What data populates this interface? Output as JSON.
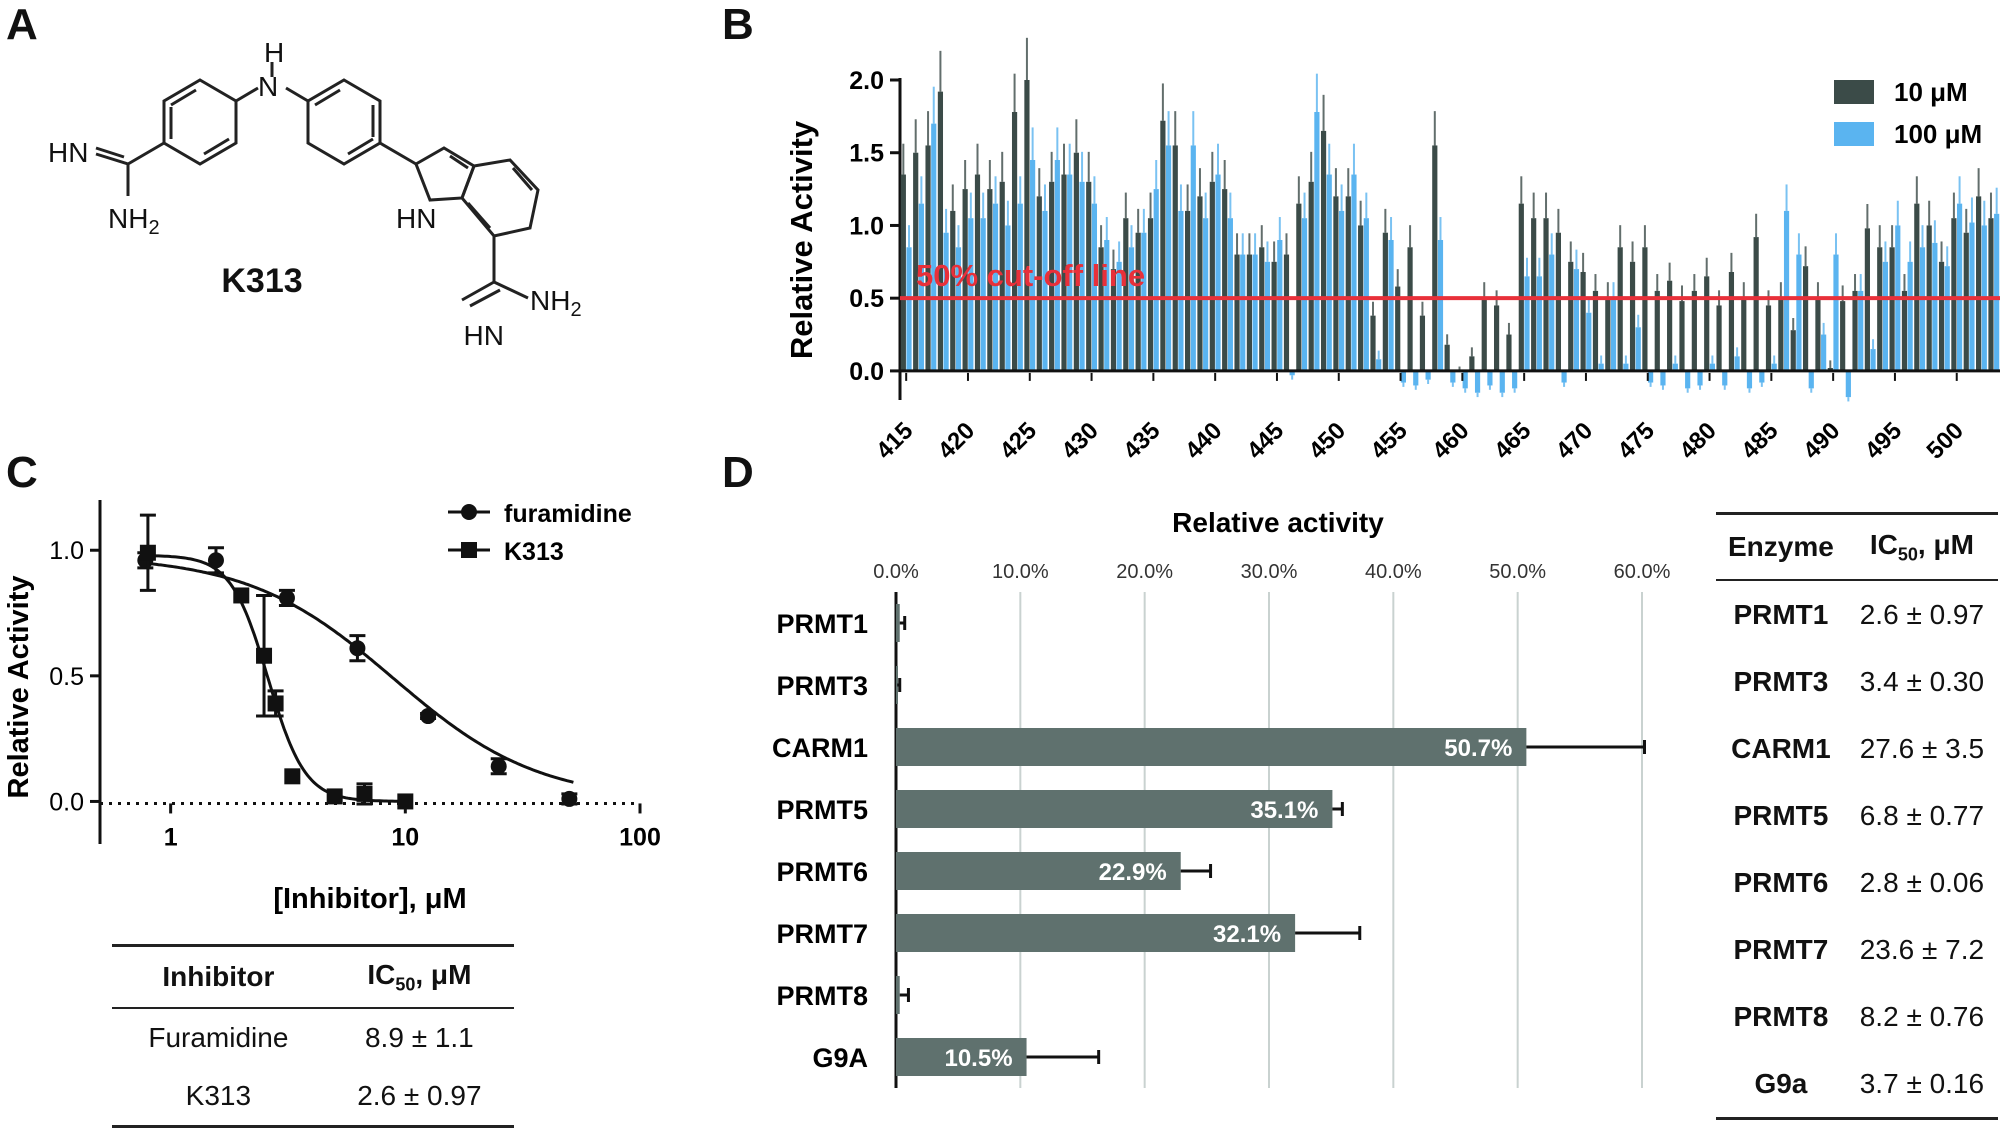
{
  "panels": {
    "a": "A",
    "b": "B",
    "c": "C",
    "d": "D"
  },
  "panel_a": {
    "compound_name": "K313",
    "atom_labels": {
      "nh": "NH",
      "h": "H",
      "hn": "HN",
      "nh2": "NH",
      "sub2": "2",
      "n": "N"
    }
  },
  "colors": {
    "dark_bar": "#3b4b48",
    "light_bar": "#5ab4f0",
    "cutoff_line": "#e8303a",
    "bar_d": "#5f716e",
    "axis": "#111111"
  },
  "chart_data": [
    {
      "type": "bar",
      "panel": "B",
      "ylabel": "Relative Activity",
      "ylim": [
        -0.2,
        2.0
      ],
      "yticks": [
        "0.0",
        "0.5",
        "1.0",
        "1.5",
        "2.0"
      ],
      "x_start": 415,
      "x_end": 503,
      "xticks": [
        "415",
        "420",
        "425",
        "430",
        "435",
        "440",
        "445",
        "450",
        "455",
        "460",
        "465",
        "470",
        "475",
        "480",
        "485",
        "490",
        "495",
        "500"
      ],
      "legend_position": "top-right",
      "cutoff": {
        "value": 0.5,
        "label": "50% cut-off line"
      },
      "series": [
        {
          "name": "10 μM",
          "values": [
            1.35,
            1.5,
            1.55,
            1.92,
            1.1,
            1.25,
            1.35,
            1.25,
            1.3,
            1.78,
            2.0,
            1.2,
            1.3,
            1.35,
            1.5,
            1.3,
            0.85,
            0.7,
            1.05,
            0.95,
            1.05,
            1.72,
            1.55,
            1.1,
            1.2,
            1.3,
            1.25,
            0.8,
            0.8,
            0.85,
            0.75,
            0.8,
            1.15,
            1.3,
            1.65,
            1.2,
            1.2,
            1.0,
            0.38,
            0.95,
            0.58,
            0.85,
            0.38,
            1.55,
            0.18,
            0.0,
            0.1,
            0.5,
            0.45,
            0.25,
            1.15,
            1.05,
            1.05,
            0.95,
            0.75,
            0.68,
            0.55,
            0.5,
            0.85,
            0.75,
            0.85,
            0.55,
            0.62,
            0.48,
            0.55,
            0.65,
            0.45,
            0.68,
            0.5,
            0.92,
            0.45,
            0.5,
            0.28,
            0.72,
            0.5,
            0.02,
            0.48,
            0.55,
            0.98,
            0.85,
            0.85,
            0.55,
            1.15,
            1.0,
            0.75,
            1.05,
            0.95,
            1.2,
            1.05
          ],
          "color": "#3b4b48"
        },
        {
          "name": "100 μM",
          "values": [
            0.85,
            1.15,
            1.7,
            0.95,
            0.85,
            1.05,
            1.05,
            1.15,
            1.0,
            1.15,
            1.45,
            1.1,
            1.45,
            1.35,
            1.3,
            1.15,
            0.9,
            0.75,
            0.85,
            0.95,
            1.25,
            1.55,
            1.1,
            1.55,
            1.05,
            1.35,
            1.05,
            0.8,
            0.8,
            0.75,
            0.9,
            -0.03,
            1.05,
            1.78,
            1.35,
            1.1,
            1.35,
            1.05,
            0.08,
            0.9,
            -0.08,
            -0.1,
            -0.06,
            0.9,
            -0.08,
            -0.12,
            -0.15,
            -0.1,
            -0.15,
            -0.12,
            0.65,
            0.65,
            0.8,
            -0.08,
            0.7,
            0.4,
            0.05,
            0.5,
            0.05,
            0.3,
            -0.08,
            -0.1,
            0.05,
            -0.12,
            -0.1,
            0.05,
            -0.1,
            0.1,
            -0.12,
            -0.08,
            0.05,
            1.1,
            0.8,
            -0.12,
            0.25,
            0.8,
            -0.18,
            0.55,
            0.15,
            0.75,
            1.0,
            0.75,
            0.85,
            0.88,
            0.72,
            1.15,
            1.02,
            1.0,
            1.08
          ],
          "color": "#5ab4f0"
        }
      ]
    },
    {
      "type": "scatter",
      "panel": "C",
      "xlabel": "[Inhibitor], μM",
      "ylabel": "Relative Activity",
      "xscale": "log",
      "xlim": [
        0.5,
        100
      ],
      "ylim": [
        -0.05,
        1.2
      ],
      "xticks": [
        "1",
        "10",
        "100"
      ],
      "yticks": [
        "0.0",
        "0.5",
        "1.0"
      ],
      "legend_position": "top-right",
      "series": [
        {
          "name": "furamidine",
          "marker": "circle",
          "ic50": 8.9,
          "x": [
            0.78,
            1.56,
            3.13,
            6.25,
            12.5,
            25,
            50
          ],
          "y": [
            0.96,
            0.96,
            0.81,
            0.61,
            0.34,
            0.14,
            0.01
          ],
          "err": [
            0.03,
            0.05,
            0.03,
            0.05,
            0.01,
            0.03,
            0.02
          ]
        },
        {
          "name": "K313",
          "marker": "square",
          "ic50": 2.6,
          "x": [
            0.8,
            2.0,
            2.5,
            2.8,
            3.3,
            5.0,
            6.7,
            10
          ],
          "y": [
            0.99,
            0.82,
            0.58,
            0.39,
            0.1,
            0.02,
            0.03,
            0.0
          ],
          "err": [
            0.15,
            0.0,
            0.24,
            0.05,
            0.0,
            0.0,
            0.04,
            0.0
          ]
        }
      ]
    },
    {
      "type": "bar",
      "panel": "D",
      "orientation": "horizontal",
      "title": "Relative activity",
      "xlim": [
        0,
        60
      ],
      "xticks": [
        "0.0%",
        "10.0%",
        "20.0%",
        "30.0%",
        "40.0%",
        "50.0%",
        "60.0%"
      ],
      "categories": [
        "PRMT1",
        "PRMT3",
        "CARM1",
        "PRMT5",
        "PRMT6",
        "PRMT7",
        "PRMT8",
        "G9A"
      ],
      "values": [
        0.3,
        0.1,
        50.7,
        35.1,
        22.9,
        32.1,
        0.3,
        10.5
      ],
      "errors": [
        0.4,
        0.2,
        9.5,
        0.8,
        2.4,
        5.2,
        0.7,
        5.8
      ],
      "labels": [
        "",
        "",
        "50.7%",
        "35.1%",
        "22.9%",
        "32.1%",
        "",
        "10.5%"
      ]
    }
  ],
  "table_c": {
    "headers": [
      "Inhibitor",
      "IC",
      "50",
      ", μM"
    ],
    "rows": [
      [
        "Furamidine",
        "8.9 ± 1.1"
      ],
      [
        "K313",
        "2.6 ± 0.97"
      ]
    ]
  },
  "table_d": {
    "headers": [
      "Enzyme",
      "IC",
      "50",
      ", μM"
    ],
    "rows": [
      [
        "PRMT1",
        "2.6 ± 0.97"
      ],
      [
        "PRMT3",
        "3.4 ± 0.30"
      ],
      [
        "CARM1",
        "27.6 ± 3.5"
      ],
      [
        "PRMT5",
        "6.8 ± 0.77"
      ],
      [
        "PRMT6",
        "2.8 ± 0.06"
      ],
      [
        "PRMT7",
        "23.6 ± 7.2"
      ],
      [
        "PRMT8",
        "8.2 ± 0.76"
      ],
      [
        "G9a",
        "3.7 ± 0.16"
      ]
    ]
  }
}
